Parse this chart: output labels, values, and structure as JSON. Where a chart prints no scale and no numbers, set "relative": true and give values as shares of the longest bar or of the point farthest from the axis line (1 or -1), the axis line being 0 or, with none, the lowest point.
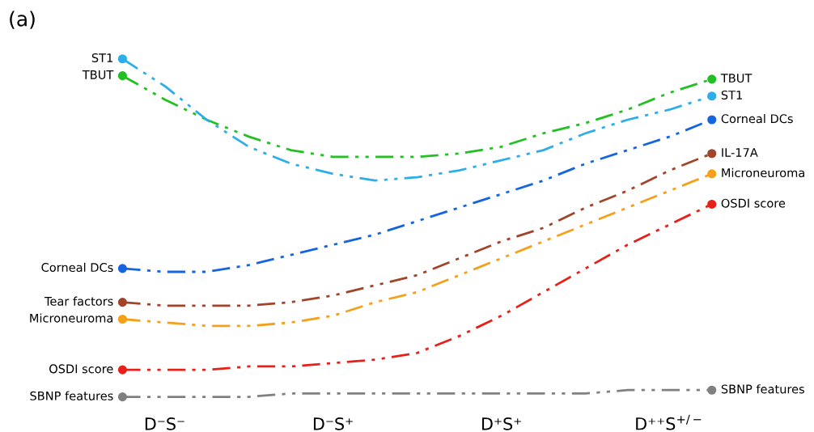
{
  "chart_data": {
    "type": "line",
    "title": "(a)",
    "relative": true,
    "line_style": "dashed",
    "grid": false,
    "legend": false,
    "tick_labels": "x",
    "categories": [
      null,
      "D⁻S⁻",
      null,
      null,
      null,
      "D⁻S⁺",
      null,
      null,
      null,
      "D⁺S⁺",
      null,
      null,
      null,
      "D⁺⁺S$^{+/−}$",
      null
    ],
    "series": [
      {
        "name": "TBUT",
        "color": "#22c022",
        "values": [
          0.95,
          0.88,
          0.82,
          0.77,
          0.73,
          0.71,
          0.71,
          0.71,
          0.72,
          0.74,
          0.78,
          0.81,
          0.85,
          0.9,
          0.94
        ]
      },
      {
        "name": "ST1",
        "color": "#2eaee8",
        "values": [
          1.0,
          0.92,
          0.82,
          0.74,
          0.69,
          0.66,
          0.64,
          0.65,
          0.67,
          0.7,
          0.73,
          0.78,
          0.82,
          0.85,
          0.89
        ]
      },
      {
        "name": "Corneal DCs",
        "color": "#1565e0",
        "values": [
          0.38,
          0.37,
          0.37,
          0.39,
          0.42,
          0.45,
          0.48,
          0.52,
          0.56,
          0.6,
          0.64,
          0.69,
          0.73,
          0.77,
          0.82
        ]
      },
      {
        "name": "Tear factors",
        "color": "#a0452a",
        "values": [
          0.28,
          0.27,
          0.27,
          0.27,
          0.28,
          0.3,
          0.33,
          0.36,
          0.41,
          0.46,
          0.5,
          0.56,
          0.61,
          0.67,
          0.72
        ]
      },
      {
        "name": "Microneuroma",
        "color": "#f5a01a",
        "values": [
          0.23,
          0.22,
          0.21,
          0.21,
          0.22,
          0.24,
          0.28,
          0.31,
          0.36,
          0.41,
          0.46,
          0.51,
          0.56,
          0.61,
          0.66
        ]
      },
      {
        "name": "OSDI score",
        "color": "#e8201a",
        "values": [
          0.08,
          0.08,
          0.08,
          0.09,
          0.09,
          0.1,
          0.11,
          0.13,
          0.18,
          0.24,
          0.31,
          0.38,
          0.45,
          0.51,
          0.57
        ]
      },
      {
        "name": "SBNP features",
        "color": "#808080",
        "values": [
          0,
          0,
          0,
          0,
          0.01,
          0.01,
          0.01,
          0.01,
          0.01,
          0.01,
          0.01,
          0.01,
          0.02,
          0.02,
          0.02
        ]
      }
    ],
    "annotations": [
      "TBUT",
      "ST1",
      "Corneal DCs",
      "IL-17A",
      "Microneuroma",
      "OSDI score",
      "SBNP features"
    ]
  }
}
